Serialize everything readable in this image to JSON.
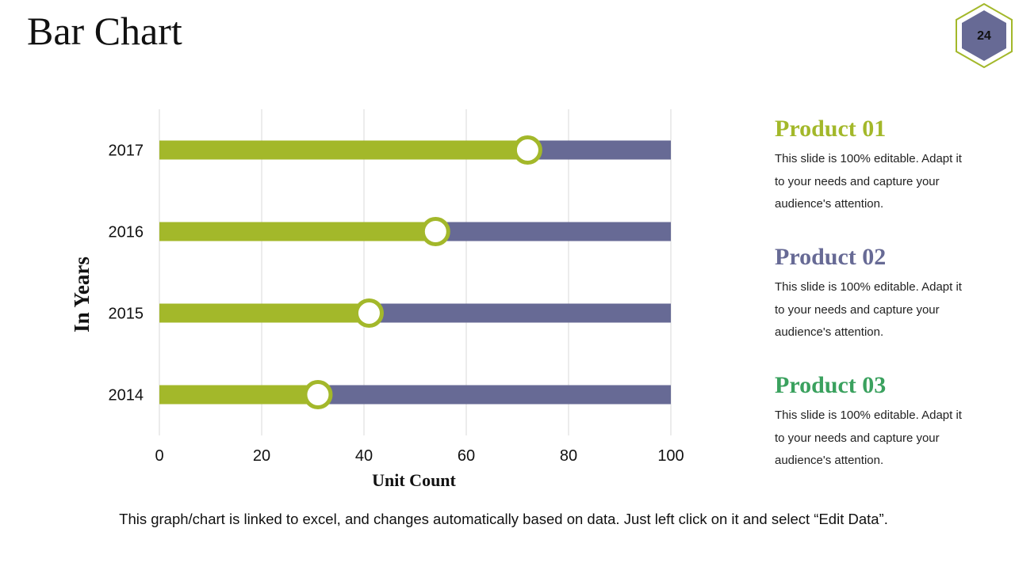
{
  "slide": {
    "title": "Bar Chart",
    "page_number": "24",
    "footer": "This graph/chart is linked to excel, and changes automatically based on data. Just left click on it and select “Edit Data”."
  },
  "colors": {
    "green": "#a3b82a",
    "purple": "#676a95",
    "product3": "#3aa15e",
    "grid": "#d9d9d9"
  },
  "chart_data": {
    "type": "bar",
    "orientation": "horizontal",
    "categories": [
      "2017",
      "2016",
      "2015",
      "2014"
    ],
    "series": [
      {
        "values": [
          72,
          54,
          41,
          31
        ],
        "color": "#a3b82a"
      },
      {
        "values": [
          100,
          100,
          100,
          100
        ],
        "color": "#676a95"
      }
    ],
    "xlabel": "Unit Count",
    "ylabel": "In Years",
    "xlim": [
      0,
      100
    ],
    "xticks": [
      0,
      20,
      40,
      60,
      80,
      100
    ],
    "grid": true,
    "legend": "none"
  },
  "legend": [
    {
      "title": "Product 01",
      "desc": "This slide is 100% editable. Adapt it to your needs and capture your audience's attention.",
      "color": "#a3b82a"
    },
    {
      "title": "Product 02",
      "desc": "This slide is 100% editable. Adapt it to your needs and capture your audience's attention.",
      "color": "#676a95"
    },
    {
      "title": "Product 03",
      "desc": "This slide is 100% editable. Adapt it to your needs and capture your audience's attention.",
      "color": "#3aa15e"
    }
  ]
}
